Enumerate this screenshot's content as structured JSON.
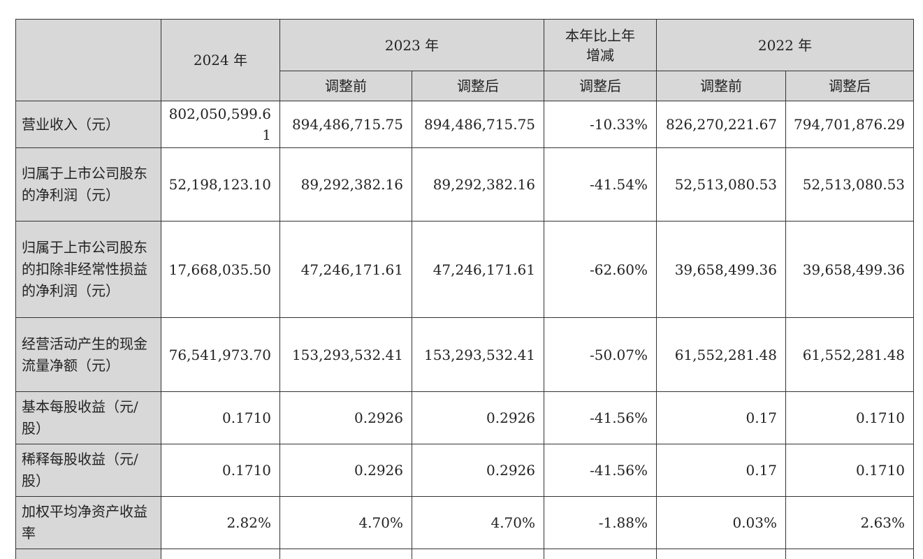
{
  "header": {
    "y2024": "2024 年",
    "y2023": "2023 年",
    "change": "本年比上年增减",
    "y2022": "2022 年",
    "before": "调整前",
    "after": "调整后"
  },
  "rows": [
    {
      "label": "营业收入（元）",
      "v2024": "802,050,599.61",
      "v2023_before": "894,486,715.75",
      "v2023_after": "894,486,715.75",
      "change": "-10.33%",
      "v2022_before": "826,270,221.67",
      "v2022_after": "794,701,876.29"
    },
    {
      "label": "归属于上市公司股东的净利润（元）",
      "v2024": "52,198,123.10",
      "v2023_before": "89,292,382.16",
      "v2023_after": "89,292,382.16",
      "change": "-41.54%",
      "v2022_before": "52,513,080.53",
      "v2022_after": "52,513,080.53"
    },
    {
      "label": "归属于上市公司股东的扣除非经常性损益的净利润（元）",
      "v2024": "17,668,035.50",
      "v2023_before": "47,246,171.61",
      "v2023_after": "47,246,171.61",
      "change": "-62.60%",
      "v2022_before": "39,658,499.36",
      "v2022_after": "39,658,499.36"
    },
    {
      "label": "经营活动产生的现金流量净额（元）",
      "v2024": "76,541,973.70",
      "v2023_before": "153,293,532.41",
      "v2023_after": "153,293,532.41",
      "change": "-50.07%",
      "v2022_before": "61,552,281.48",
      "v2022_after": "61,552,281.48"
    },
    {
      "label": "基本每股收益（元/股）",
      "v2024": "0.1710",
      "v2023_before": "0.2926",
      "v2023_after": "0.2926",
      "change": "-41.56%",
      "v2022_before": "0.17",
      "v2022_after": "0.1710"
    },
    {
      "label": "稀释每股收益（元/股）",
      "v2024": "0.1710",
      "v2023_before": "0.2926",
      "v2023_after": "0.2926",
      "change": "-41.56%",
      "v2022_before": "0.17",
      "v2022_after": "0.1710"
    },
    {
      "label": "加权平均净资产收益率",
      "v2024": "2.82%",
      "v2023_before": "4.70%",
      "v2023_after": "4.70%",
      "change": "-1.88%",
      "v2022_before": "0.03%",
      "v2022_after": "2.63%"
    }
  ]
}
